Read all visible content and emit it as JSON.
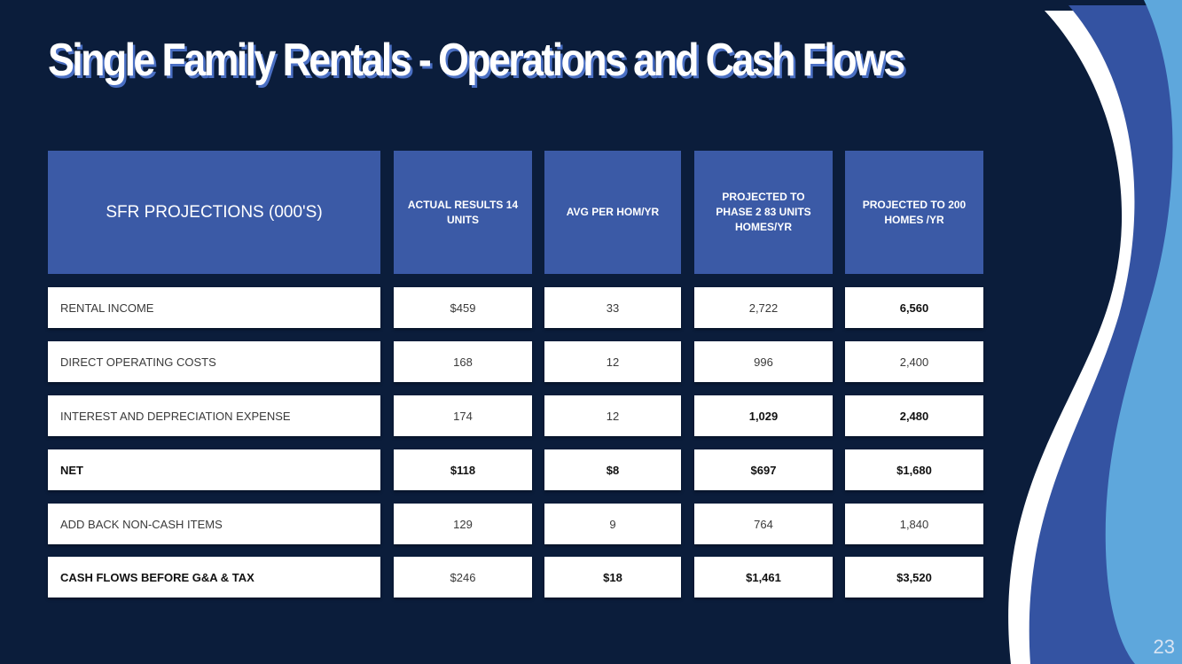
{
  "slide": {
    "title": "Single Family Rentals - Operations and Cash Flows",
    "page_number": "23",
    "colors": {
      "background": "#0b1d3b",
      "header_fill": "#3b5aa6",
      "row_fill": "#ffffff",
      "wave_dark": "#3453a2",
      "wave_light": "#5ea7dc"
    }
  },
  "table": {
    "headers": [
      "SFR PROJECTIONS (000'S)",
      "ACTUAL RESULTS 14 UNITS",
      "AVG PER HOM/YR",
      "PROJECTED TO PHASE 2 83 UNITS HOMES/YR",
      "PROJECTED TO 200 HOMES /YR"
    ],
    "rows": [
      {
        "label": "RENTAL INCOME",
        "values": [
          "$459",
          "33",
          "2,722",
          "6,560"
        ]
      },
      {
        "label": "DIRECT OPERATING COSTS",
        "values": [
          "168",
          "12",
          "996",
          "2,400"
        ]
      },
      {
        "label": "INTEREST AND DEPRECIATION EXPENSE",
        "values": [
          "174",
          "12",
          "1,029",
          "2,480"
        ]
      },
      {
        "label": "NET",
        "values": [
          "$118",
          "$8",
          "$697",
          "$1,680"
        ]
      },
      {
        "label": "ADD BACK NON-CASH ITEMS",
        "values": [
          "129",
          "9",
          "764",
          "1,840"
        ]
      },
      {
        "label": "CASH FLOWS BEFORE G&A & TAX",
        "values": [
          "$246",
          "$18",
          "$1,461",
          "$3,520"
        ]
      }
    ]
  }
}
